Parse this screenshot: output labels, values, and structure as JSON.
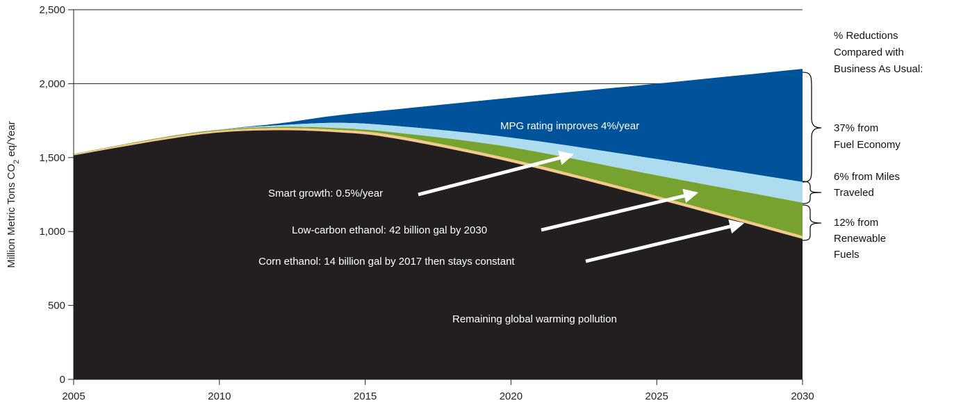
{
  "chart_data": {
    "type": "area",
    "ylabel": {
      "prefix": "Million Metric Tons CO",
      "sub": "2",
      "suffix": " eq/Year"
    },
    "xlim": [
      2005,
      2030
    ],
    "ylim": [
      0,
      2500
    ],
    "x_ticks": [
      "2005",
      "2010",
      "2015",
      "2020",
      "2025",
      "2030"
    ],
    "y_ticks": [
      "0",
      "500",
      "1,000",
      "1,500",
      "2,000",
      "2,500"
    ],
    "gridlines_y": [
      2000,
      2500
    ],
    "colors": {
      "remaining": "#231f20",
      "corn": "#f5c98a",
      "lowcarbon": "#78a22f",
      "smart": "#aedcef",
      "mpg": "#00539b"
    },
    "series": [
      {
        "name": "MPG rating improves 4%/year",
        "x": [
          2005,
          2008,
          2010,
          2012,
          2014,
          2016,
          2020,
          2025,
          2030
        ],
        "upper": [
          1525,
          1635,
          1690,
          1730,
          1785,
          1825,
          1905,
          2000,
          2100
        ],
        "lower": [
          1525,
          1635,
          1690,
          1718,
          1735,
          1715,
          1635,
          1490,
          1335
        ]
      },
      {
        "name": "Smart growth: 0.5%/year",
        "x": [
          2005,
          2008,
          2010,
          2012,
          2014,
          2016,
          2020,
          2025,
          2030
        ],
        "upper": [
          1525,
          1635,
          1690,
          1718,
          1735,
          1715,
          1635,
          1490,
          1335
        ],
        "lower": [
          1525,
          1635,
          1688,
          1708,
          1700,
          1670,
          1570,
          1380,
          1195
        ]
      },
      {
        "name": "Low-carbon ethanol: 42 billion gal by 2030",
        "x": [
          2005,
          2008,
          2010,
          2012,
          2014,
          2016,
          2020,
          2025,
          2030
        ],
        "upper": [
          1525,
          1635,
          1688,
          1708,
          1700,
          1670,
          1570,
          1380,
          1195
        ],
        "lower": [
          1523,
          1630,
          1682,
          1700,
          1688,
          1650,
          1490,
          1240,
          970
        ]
      },
      {
        "name": "Corn ethanol: 14 billion gal by 2017 then stays constant",
        "x": [
          2005,
          2008,
          2010,
          2012,
          2014,
          2016,
          2020,
          2025,
          2030
        ],
        "upper": [
          1523,
          1630,
          1682,
          1700,
          1688,
          1650,
          1490,
          1240,
          970
        ],
        "lower": [
          1515,
          1618,
          1670,
          1685,
          1672,
          1630,
          1470,
          1220,
          950
        ]
      },
      {
        "name": "Remaining global warming pollution",
        "x": [
          2005,
          2008,
          2010,
          2012,
          2014,
          2016,
          2020,
          2025,
          2030
        ],
        "upper": [
          1515,
          1618,
          1670,
          1685,
          1672,
          1630,
          1470,
          1220,
          950
        ],
        "lower": [
          0,
          0,
          0,
          0,
          0,
          0,
          0,
          0,
          0
        ]
      }
    ],
    "annotations": {
      "mpg": "MPG rating improves 4%/year",
      "smart": "Smart growth: 0.5%/year",
      "lowcarbon": "Low-carbon ethanol: 42 billion gal by 2030",
      "corn": "Corn ethanol: 14 billion gal by 2017 then stays constant",
      "remaining": "Remaining global warming pollution"
    },
    "side_labels": {
      "header": [
        "% Reductions",
        "Compared with",
        "Business As Usual:"
      ],
      "fuel_economy": [
        "37% from",
        "Fuel Economy"
      ],
      "miles": [
        "6% from Miles",
        "Traveled"
      ],
      "renewable": [
        "12% from",
        "Renewable",
        "Fuels"
      ]
    }
  }
}
